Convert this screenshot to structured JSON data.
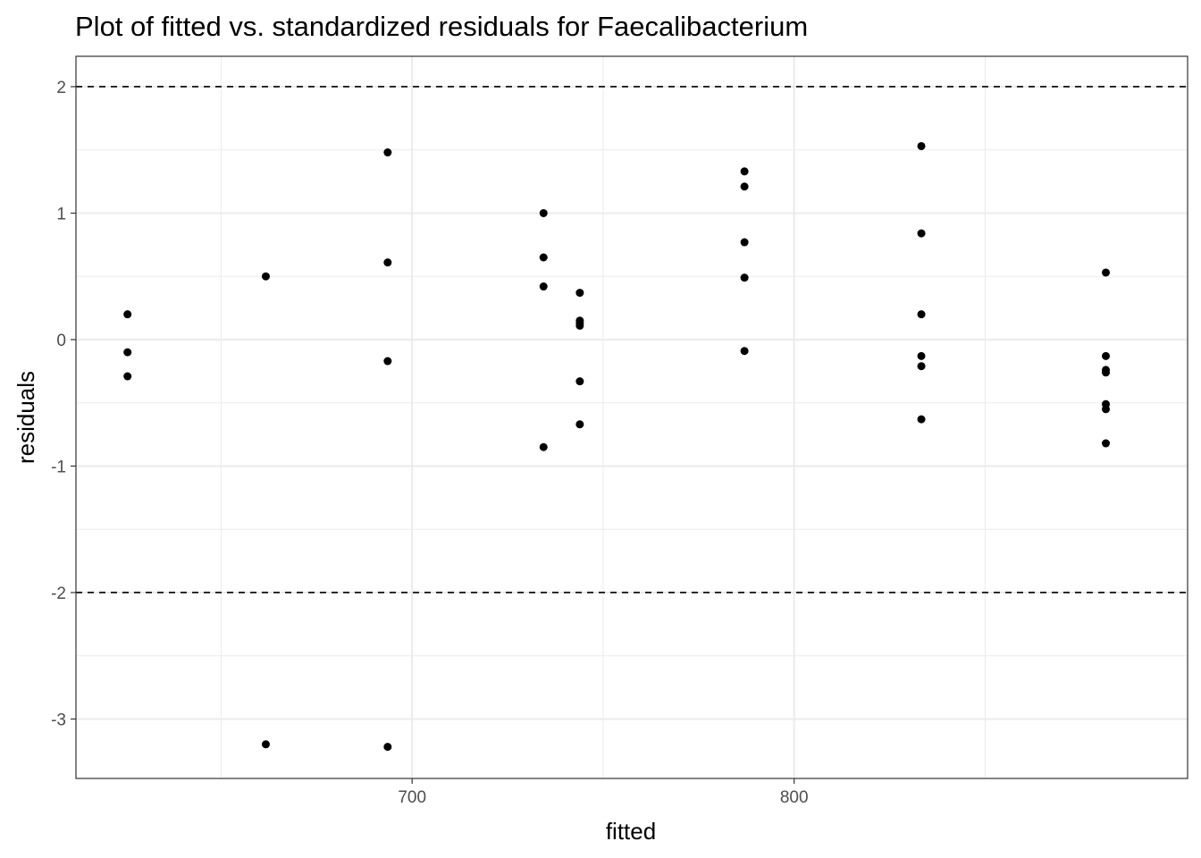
{
  "chart_data": {
    "type": "scatter",
    "title": "Plot of fitted vs. standardized residuals for Faecalibacterium",
    "xlabel": "fitted",
    "ylabel": "residuals",
    "xlim": [
      612,
      903
    ],
    "ylim": [
      -3.47,
      2.24
    ],
    "x_ticks": [
      700,
      800
    ],
    "x_tick_labels": [
      "700",
      "800"
    ],
    "x_minor_ticks": [
      650,
      750,
      850
    ],
    "y_ticks": [
      -3,
      -2,
      -1,
      0,
      1,
      2
    ],
    "y_tick_labels": [
      "-3",
      "-2",
      "-1",
      "0",
      "1",
      "2"
    ],
    "y_minor_ticks": [
      -2.5,
      -1.5,
      -0.5,
      0.5,
      1.5
    ],
    "reference_lines": [
      2,
      -2
    ],
    "grid": true,
    "theme": "bw",
    "point_color": "#000000",
    "points": [
      {
        "x": 625.5,
        "y": 0.2
      },
      {
        "x": 625.5,
        "y": -0.1
      },
      {
        "x": 625.5,
        "y": -0.29
      },
      {
        "x": 661.7,
        "y": 0.5
      },
      {
        "x": 661.7,
        "y": -3.2
      },
      {
        "x": 693.6,
        "y": 1.48
      },
      {
        "x": 693.6,
        "y": 0.61
      },
      {
        "x": 693.6,
        "y": -0.17
      },
      {
        "x": 693.6,
        "y": -3.22
      },
      {
        "x": 734.4,
        "y": 1.0
      },
      {
        "x": 734.4,
        "y": 0.65
      },
      {
        "x": 734.4,
        "y": 0.42
      },
      {
        "x": 734.4,
        "y": -0.85
      },
      {
        "x": 743.9,
        "y": 0.37
      },
      {
        "x": 743.9,
        "y": 0.15
      },
      {
        "x": 743.9,
        "y": 0.13
      },
      {
        "x": 743.9,
        "y": 0.11
      },
      {
        "x": 743.9,
        "y": -0.33
      },
      {
        "x": 743.9,
        "y": -0.67
      },
      {
        "x": 787.0,
        "y": 1.33
      },
      {
        "x": 787.0,
        "y": 1.21
      },
      {
        "x": 787.0,
        "y": 0.77
      },
      {
        "x": 787.0,
        "y": 0.49
      },
      {
        "x": 787.0,
        "y": -0.09
      },
      {
        "x": 833.3,
        "y": 1.53
      },
      {
        "x": 833.3,
        "y": 0.84
      },
      {
        "x": 833.3,
        "y": 0.2
      },
      {
        "x": 833.3,
        "y": -0.13
      },
      {
        "x": 833.3,
        "y": -0.21
      },
      {
        "x": 833.3,
        "y": -0.63
      },
      {
        "x": 881.6,
        "y": 0.53
      },
      {
        "x": 881.6,
        "y": -0.13
      },
      {
        "x": 881.6,
        "y": -0.24
      },
      {
        "x": 881.6,
        "y": -0.26
      },
      {
        "x": 881.6,
        "y": -0.51
      },
      {
        "x": 881.6,
        "y": -0.55
      },
      {
        "x": 881.6,
        "y": -0.82
      }
    ]
  }
}
